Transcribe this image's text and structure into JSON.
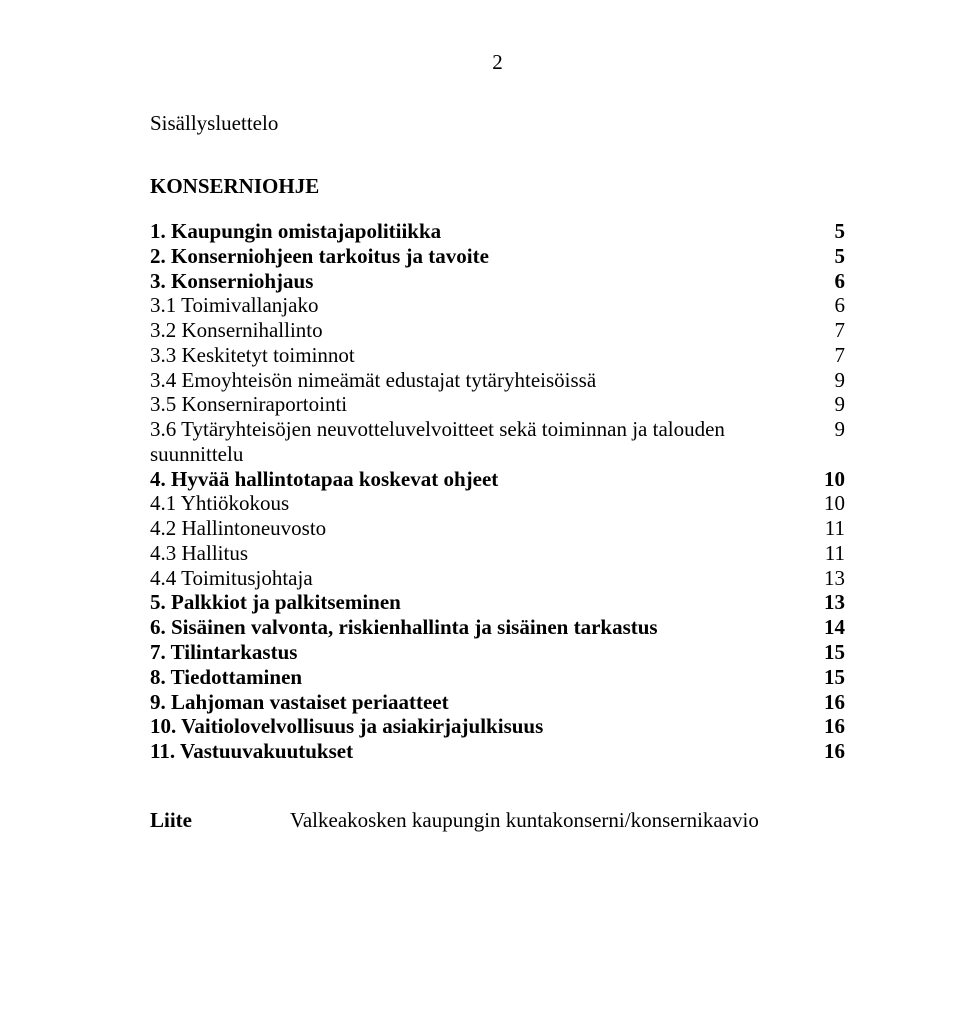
{
  "page_number": "2",
  "title": "Sisällysluettelo",
  "heading": "KONSERNIOHJE",
  "toc": [
    {
      "label": "1.   Kaupungin omistajapolitiikka",
      "page": "5",
      "bold": true
    },
    {
      "label": "2.   Konserniohjeen tarkoitus ja tavoite",
      "page": "5",
      "bold": true
    },
    {
      "label": "3.   Konserniohjaus",
      "page": "6",
      "bold": true
    },
    {
      "label": "3.1  Toimivallanjako",
      "page": "6",
      "bold": false
    },
    {
      "label": "3.2  Konsernihallinto",
      "page": "7",
      "bold": false
    },
    {
      "label": "3.3  Keskitetyt toiminnot",
      "page": "7",
      "bold": false
    },
    {
      "label": "3.4  Emoyhteisön nimeämät edustajat tytäryhteisöissä",
      "page": "9",
      "bold": false
    },
    {
      "label": "3.5  Konserniraportointi",
      "page": "9",
      "bold": false
    },
    {
      "label": "3.6  Tytäryhteisöjen neuvotteluvelvoitteet sekä toiminnan ja talouden suunnittelu",
      "page": "9",
      "bold": false
    },
    {
      "label": "4.   Hyvää hallintotapaa koskevat ohjeet",
      "page": "10",
      "bold": true
    },
    {
      "label": "4.1  Yhtiökokous",
      "page": "10",
      "bold": false
    },
    {
      "label": "4.2  Hallintoneuvosto",
      "page": "11",
      "bold": false
    },
    {
      "label": "4.3  Hallitus",
      "page": "11",
      "bold": false
    },
    {
      "label": "4.4  Toimitusjohtaja",
      "page": "13",
      "bold": false
    },
    {
      "label": "5.   Palkkiot ja palkitseminen",
      "page": "13",
      "bold": true
    },
    {
      "label": "6.   Sisäinen valvonta, riskienhallinta ja sisäinen tarkastus",
      "page": "14",
      "bold": true
    },
    {
      "label": "7.   Tilintarkastus",
      "page": "15",
      "bold": true
    },
    {
      "label": "8.   Tiedottaminen",
      "page": "15",
      "bold": true
    },
    {
      "label": "9.   Lahjoman vastaiset periaatteet",
      "page": "16",
      "bold": true
    },
    {
      "label": "10. Vaitiolovelvollisuus ja asiakirjajulkisuus",
      "page": "16",
      "bold": true
    },
    {
      "label": "11. Vastuuvakuutukset",
      "page": "16",
      "bold": true
    }
  ],
  "appendix": {
    "label": "Liite",
    "text": "Valkeakosken kaupungin kuntakonserni/konsernikaavio"
  }
}
